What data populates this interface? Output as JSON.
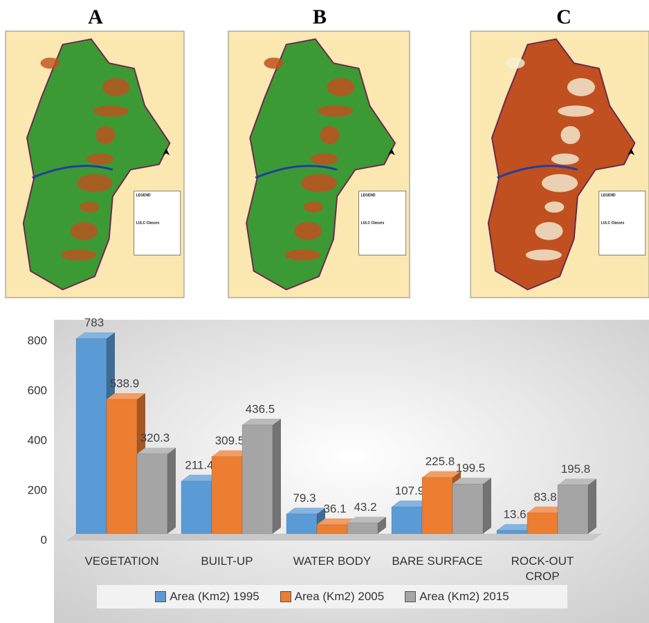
{
  "panels": [
    {
      "label": "A",
      "legend_title": "LEGEND",
      "classes_title": "LULC Classes"
    },
    {
      "label": "B",
      "legend_title": "LEGEND",
      "classes_title": "LULC Classes"
    },
    {
      "label": "C",
      "legend_title": "LEGEND",
      "classes_title": "LULC Classes"
    }
  ],
  "chart_data": {
    "type": "bar3d",
    "categories": [
      "VEGETATION",
      "BUILT-UP",
      "WATER BODY",
      "BARE SURFACE",
      "ROCK-OUT CROP"
    ],
    "series": [
      {
        "name": "Area (Km2) 1995",
        "color": "#5b9bd5",
        "values": [
          783,
          211.4,
          79.3,
          107.9,
          13.6
        ]
      },
      {
        "name": "Area (Km2) 2005",
        "color": "#ed7d31",
        "values": [
          538.9,
          309.5,
          36.1,
          225.8,
          83.8
        ]
      },
      {
        "name": "Area (Km2) 2015",
        "color": "#a5a5a5",
        "values": [
          320.3,
          436.5,
          43.2,
          199.5,
          195.8
        ]
      }
    ],
    "ylim": [
      0,
      800
    ],
    "yticks": [
      0,
      200,
      400,
      600,
      800
    ]
  }
}
